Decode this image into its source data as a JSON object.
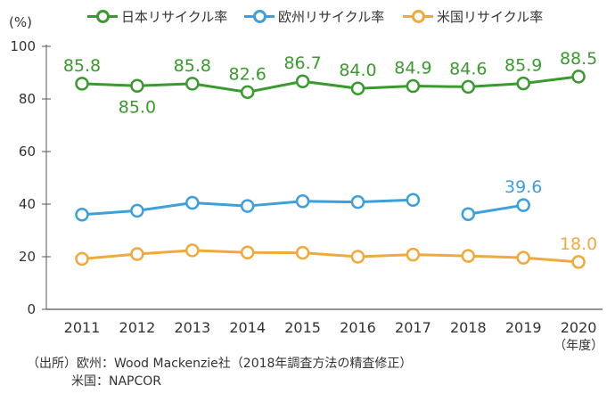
{
  "legend": [
    {
      "name": "日本リサイクル率",
      "color": "#3a9a2e"
    },
    {
      "name": "欧州リサイクル率",
      "color": "#3d9fdb"
    },
    {
      "name": "米国リサイクル率",
      "color": "#f0aa3c"
    }
  ],
  "y_unit": "(%)",
  "x_unit": "（年度）",
  "source": {
    "line1": "（出所）欧州：Wood Mackenzie社（2018年調査方法の精査修正）",
    "line2": "米国：NAPCOR"
  },
  "chart_data": {
    "type": "line",
    "x": [
      "2011",
      "2012",
      "2013",
      "2014",
      "2015",
      "2016",
      "2017",
      "2018",
      "2019",
      "2020"
    ],
    "ylim": [
      0,
      100
    ],
    "yticks": [
      0,
      20,
      40,
      60,
      80,
      100
    ],
    "grid": false,
    "legend_position": "top",
    "series": [
      {
        "name": "日本リサイクル率",
        "color": "#3a9a2e",
        "values": [
          85.8,
          85.0,
          85.8,
          82.6,
          86.7,
          84.0,
          84.9,
          84.6,
          85.9,
          88.5
        ],
        "labels": [
          "85.8",
          "85.0",
          "85.8",
          "82.6",
          "86.7",
          "84.0",
          "84.9",
          "84.6",
          "85.9",
          "88.5"
        ],
        "label_below": [
          false,
          true,
          false,
          false,
          false,
          false,
          false,
          false,
          false,
          false
        ]
      },
      {
        "name": "欧州リサイクル率",
        "color": "#3d9fdb",
        "values": [
          36,
          37.5,
          40.5,
          39.3,
          41.1,
          40.8,
          41.6,
          36.2,
          39.6,
          null
        ],
        "breaks_before": [
          7
        ],
        "labels": [
          null,
          null,
          null,
          null,
          null,
          null,
          null,
          null,
          "39.6",
          null
        ]
      },
      {
        "name": "米国リサイクル率",
        "color": "#f0aa3c",
        "values": [
          19.2,
          21,
          22.4,
          21.6,
          21.5,
          20,
          20.8,
          20.3,
          19.6,
          18.0
        ],
        "labels": [
          null,
          null,
          null,
          null,
          null,
          null,
          null,
          null,
          null,
          "18.0"
        ]
      }
    ]
  }
}
